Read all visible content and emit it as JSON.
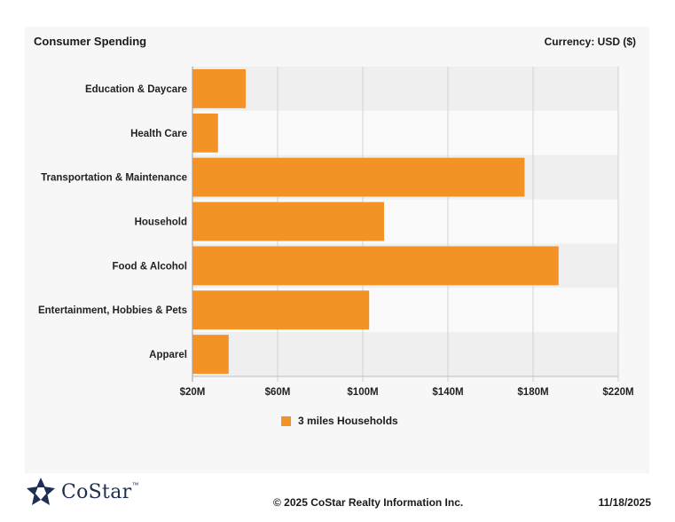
{
  "header": {
    "title": "Consumer Spending",
    "currency": "Currency: USD ($)"
  },
  "chart_data": {
    "type": "bar",
    "orientation": "horizontal",
    "categories": [
      "Education & Daycare",
      "Health Care",
      "Transportation & Maintenance",
      "Household",
      "Food & Alcohol",
      "Entertainment, Hobbies & Pets",
      "Apparel"
    ],
    "series": [
      {
        "name": "3 miles Households",
        "values": [
          45,
          32,
          176,
          110,
          192,
          103,
          37
        ]
      }
    ],
    "xlim": [
      20,
      220
    ],
    "xticks": [
      20,
      60,
      100,
      140,
      180,
      220
    ],
    "xtick_labels": [
      "$20M",
      "$60M",
      "$100M",
      "$140M",
      "$180M",
      "$220M"
    ],
    "unit": "$M",
    "grid": "vertical",
    "legend_position": "bottom",
    "bar_color": "#f39325"
  },
  "legend": {
    "label": "3 miles Households"
  },
  "footer": {
    "logo_text": "CoStar",
    "logo_tm": "™",
    "copyright": "© 2025 CoStar Realty Information Inc.",
    "date": "11/18/2025"
  }
}
